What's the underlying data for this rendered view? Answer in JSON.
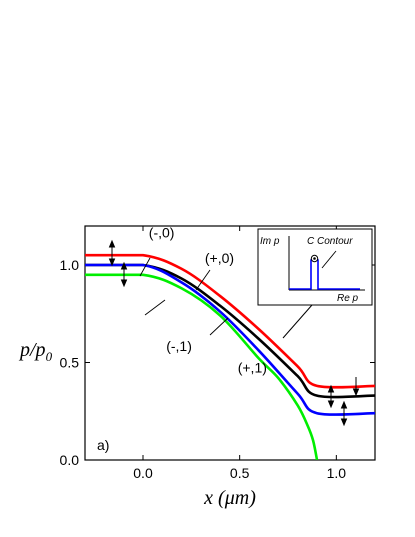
{
  "chart_data": {
    "type": "line",
    "title": "",
    "panel_label": "a)",
    "xlabel": {
      "var": "x",
      "unit": "μm"
    },
    "ylabel": {
      "var": "p/p",
      "sub": "0"
    },
    "xlim": [
      -0.3,
      1.2
    ],
    "ylim": [
      0,
      1.2
    ],
    "x_ticks": [
      0.0,
      0.5,
      1.0
    ],
    "x_tick_labels": [
      "0.0",
      "0.5",
      "1.0"
    ],
    "y_ticks": [
      0.0,
      0.5,
      1.0
    ],
    "y_tick_labels": [
      "0.0",
      "0.5",
      "1.0"
    ],
    "grid": false,
    "series": [
      {
        "color": "#ff0000",
        "x": [
          -0.3,
          0.0,
          0.2,
          0.4,
          0.6,
          0.8,
          0.9,
          1.2
        ],
        "y": [
          1.05,
          1.05,
          0.98,
          0.84,
          0.67,
          0.48,
          0.38,
          0.38
        ]
      },
      {
        "color": "#000000",
        "x": [
          -0.3,
          0.0,
          0.2,
          0.4,
          0.6,
          0.8,
          0.9,
          1.2
        ],
        "y": [
          1.0,
          1.0,
          0.93,
          0.79,
          0.62,
          0.43,
          0.33,
          0.33
        ]
      },
      {
        "color": "#0000ff",
        "x": [
          -0.3,
          0.0,
          0.2,
          0.4,
          0.6,
          0.8,
          0.9,
          1.2
        ],
        "y": [
          1.0,
          1.0,
          0.91,
          0.76,
          0.56,
          0.34,
          0.24,
          0.24
        ]
      },
      {
        "color": "#00ee00",
        "x": [
          -0.3,
          0.0,
          0.2,
          0.4,
          0.6,
          0.7,
          0.8,
          0.85,
          0.88,
          0.9
        ],
        "y": [
          0.95,
          0.95,
          0.88,
          0.74,
          0.52,
          0.42,
          0.28,
          0.18,
          0.1,
          0.0
        ]
      }
    ],
    "annotations": [
      {
        "text": "(-,0)",
        "at": [
          0.03,
          1.14
        ]
      },
      {
        "text": "(+,0)",
        "at": [
          0.32,
          1.01
        ]
      },
      {
        "text": "(-,1)",
        "at": [
          0.12,
          0.56
        ]
      },
      {
        "text": "(+,1)",
        "at": [
          0.49,
          0.45
        ]
      }
    ]
  },
  "inset": {
    "ylabel": "Im p",
    "xlabel": "Re p",
    "contour_label": "C Contour"
  }
}
